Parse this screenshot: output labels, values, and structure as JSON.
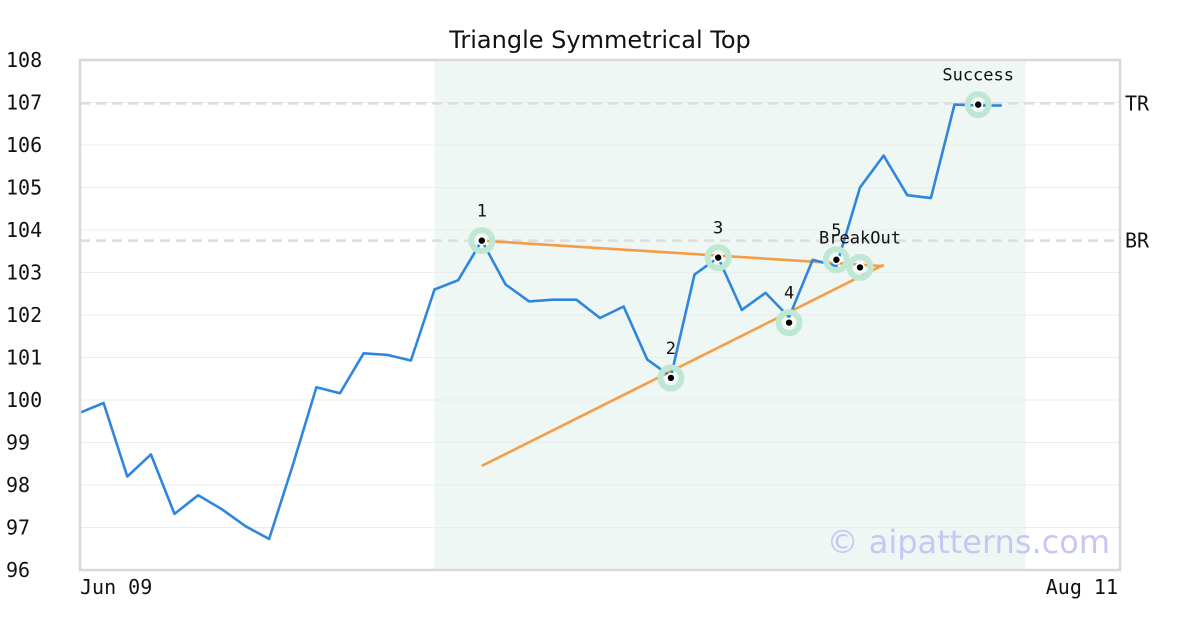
{
  "chart_data": {
    "type": "line",
    "title": "Triangle Symmetrical Top",
    "watermark": "© aipatterns.com",
    "x_tick_labels": [
      "Jun 09",
      "Aug 11"
    ],
    "ylim": [
      96,
      108
    ],
    "y_ticks": [
      96,
      97,
      98,
      99,
      100,
      101,
      102,
      103,
      104,
      105,
      106,
      107,
      108
    ],
    "grid": true,
    "colors": {
      "price": "#2e86de",
      "trendline": "#f59c45",
      "pattern_zone": "#eef7f3",
      "level": "#dddddd",
      "marker_ring": "#bfe8d4"
    },
    "pattern_zone": {
      "x_start": 15,
      "x_end": 40
    },
    "series": [
      {
        "values": [
          99.7,
          99.93,
          98.2,
          98.72,
          97.32,
          97.76,
          97.43,
          97.03,
          96.73,
          98.46,
          100.3,
          100.16,
          101.1,
          101.06,
          100.93,
          102.6,
          102.82,
          103.75,
          102.72,
          102.32,
          102.36,
          102.36,
          101.93,
          102.2,
          100.95,
          100.55,
          102.95,
          103.35,
          102.12,
          102.52,
          101.95,
          103.3,
          103.15,
          105.0,
          105.75,
          104.82,
          104.75,
          106.95,
          106.93,
          106.93
        ],
        "x_start": 0
      }
    ],
    "trendlines": [
      {
        "from": {
          "x": 17,
          "y": 103.75
        },
        "to": {
          "x": 34,
          "y": 103.15
        }
      },
      {
        "from": {
          "x": 17,
          "y": 98.45
        },
        "to": {
          "x": 34,
          "y": 103.18
        }
      }
    ],
    "levels": [
      {
        "label": "TR",
        "y": 106.98
      },
      {
        "label": "BR",
        "y": 103.75
      }
    ],
    "points": [
      {
        "label": "1",
        "x": 17,
        "y": 103.75
      },
      {
        "label": "2",
        "x": 25,
        "y": 100.52
      },
      {
        "label": "3",
        "x": 27,
        "y": 103.35
      },
      {
        "label": "4",
        "x": 30,
        "y": 101.82
      },
      {
        "label": "5",
        "x": 32,
        "y": 103.3
      },
      {
        "label": "BreakOut",
        "x": 33,
        "y": 103.12
      },
      {
        "label": "Success",
        "x": 38,
        "y": 106.95
      }
    ]
  }
}
